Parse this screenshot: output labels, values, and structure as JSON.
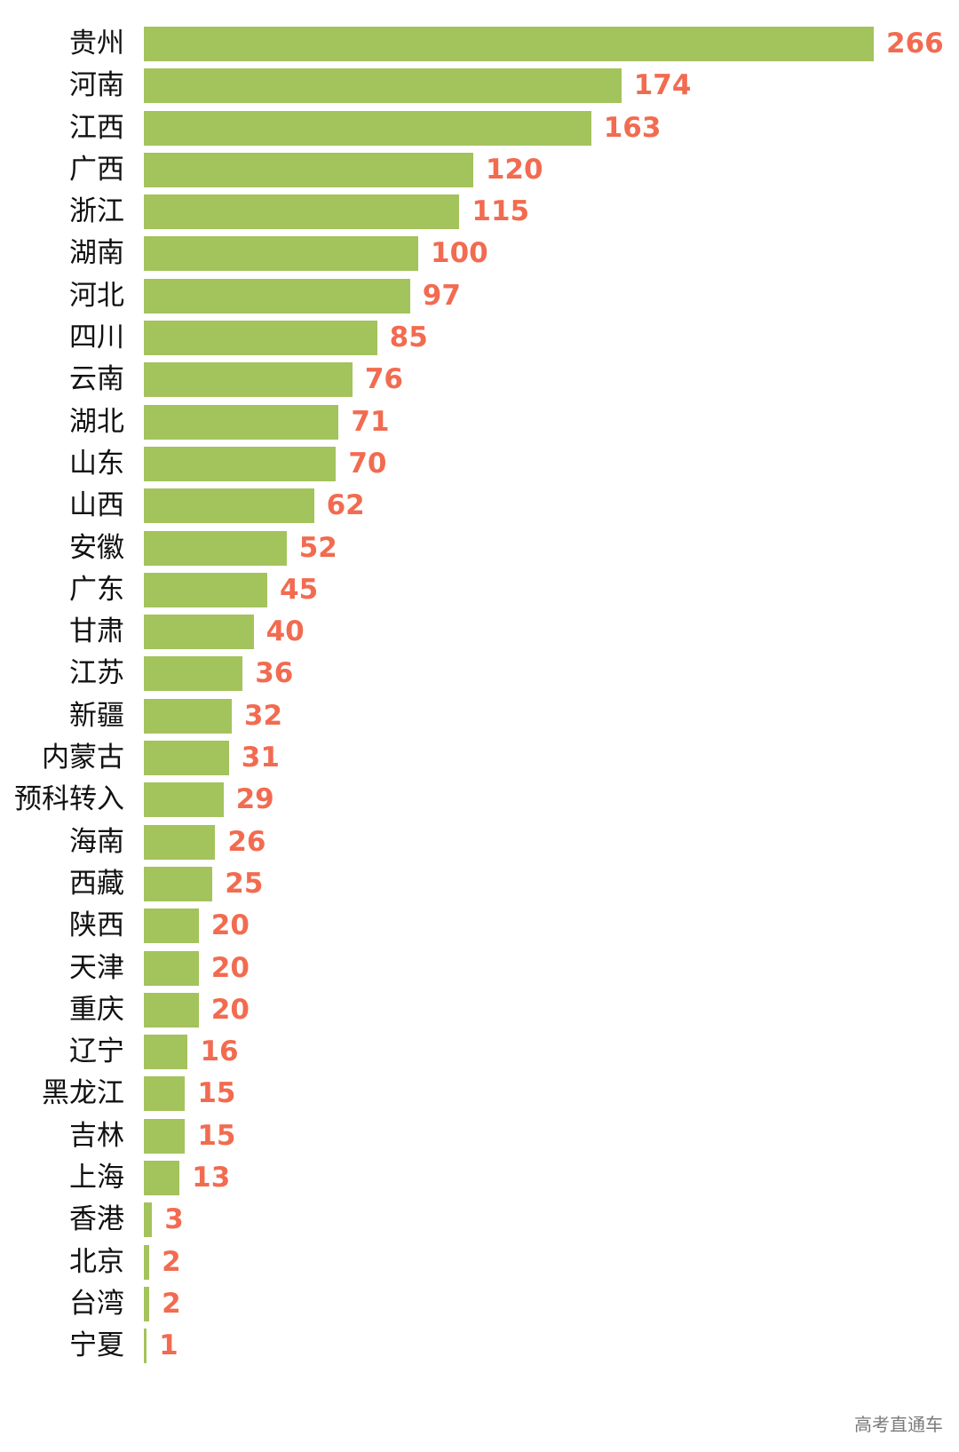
{
  "chart_data": {
    "type": "bar",
    "orientation": "horizontal",
    "title": "",
    "xlabel": "",
    "ylabel": "",
    "grid": false,
    "legend": null,
    "bar_color": "#a3c35c",
    "label_color": "#f26b50",
    "xlim": [
      0,
      266
    ],
    "categories": [
      "贵州",
      "河南",
      "江西",
      "广西",
      "浙江",
      "湖南",
      "河北",
      "四川",
      "云南",
      "湖北",
      "山东",
      "山西",
      "安徽",
      "广东",
      "甘肃",
      "江苏",
      "新疆",
      "内蒙古",
      "预科转入",
      "海南",
      "西藏",
      "陕西",
      "天津",
      "重庆",
      "辽宁",
      "黑龙江",
      "吉林",
      "上海",
      "香港",
      "北京",
      "台湾",
      "宁夏"
    ],
    "values": [
      266,
      174,
      163,
      120,
      115,
      100,
      97,
      85,
      76,
      71,
      70,
      62,
      52,
      45,
      40,
      36,
      32,
      31,
      29,
      26,
      25,
      20,
      20,
      20,
      16,
      15,
      15,
      13,
      3,
      2,
      2,
      1
    ]
  },
  "watermark": "高考直通车"
}
